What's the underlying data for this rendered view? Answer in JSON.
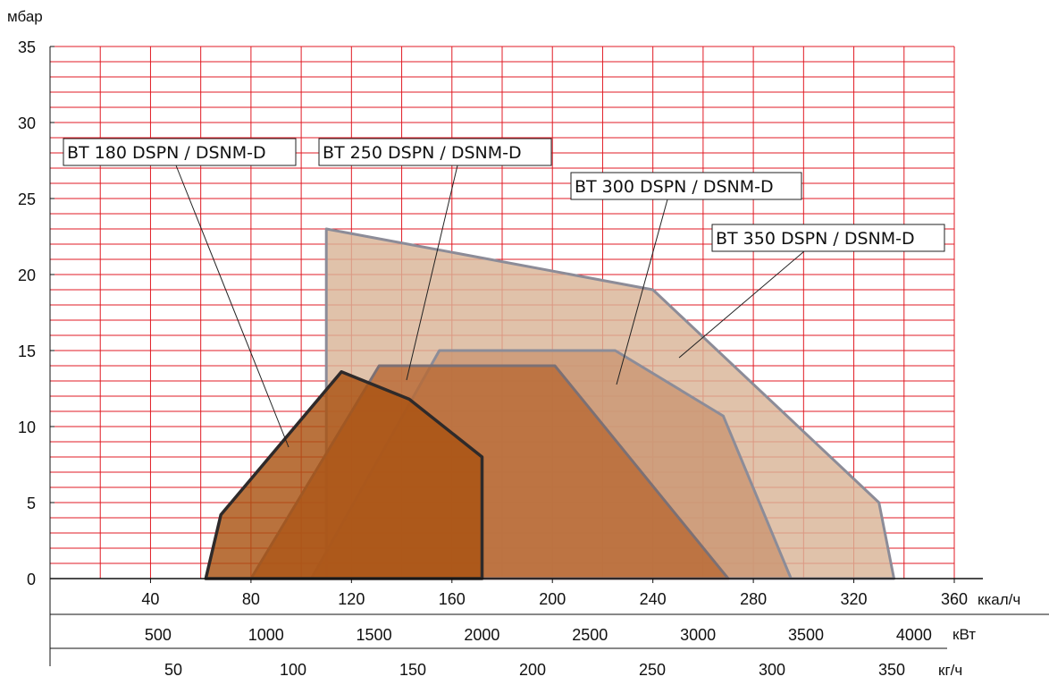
{
  "chart_data": {
    "type": "area",
    "y_unit": "мбар",
    "ylim": [
      0,
      35
    ],
    "y_ticks": [
      0,
      5,
      10,
      15,
      20,
      25,
      30,
      35
    ],
    "x_axes": [
      {
        "unit": "ккал/ч",
        "lim": [
          0,
          360
        ],
        "ticks": [
          40,
          80,
          120,
          160,
          200,
          240,
          280,
          320,
          360
        ],
        "grid_step": 20
      },
      {
        "unit": "кВт",
        "ticks": [
          500,
          1000,
          1500,
          2000,
          2500,
          3000,
          3500,
          4000
        ]
      },
      {
        "unit": "кг/ч",
        "ticks": [
          50,
          100,
          150,
          200,
          250,
          300,
          350
        ]
      }
    ],
    "grid": true,
    "series": [
      {
        "name": "BT 350 DSPN / DSNM-D",
        "fill": "#d9b497",
        "stroke": "#8c8c98",
        "points": [
          [
            110,
            0
          ],
          [
            110,
            23
          ],
          [
            240,
            19
          ],
          [
            330,
            5
          ],
          [
            336,
            0
          ]
        ]
      },
      {
        "name": "BT 300 DSPN / DSNM-D",
        "fill": "#cb9774",
        "stroke": "#8c8c98",
        "points": [
          [
            104,
            0
          ],
          [
            155,
            15
          ],
          [
            225,
            15
          ],
          [
            268,
            10.7
          ],
          [
            295,
            0
          ]
        ]
      },
      {
        "name": "BT 250 DSPN / DSNM-D",
        "fill": "#b86a36",
        "stroke": "#7c7074",
        "points": [
          [
            80,
            0
          ],
          [
            131,
            14
          ],
          [
            201,
            14
          ],
          [
            270,
            0
          ]
        ]
      },
      {
        "name": "BT 180 DSPN / DSNM-D",
        "fill": "#a95312",
        "stroke": "#2e2a2a",
        "points": [
          [
            62,
            0
          ],
          [
            68,
            4.2
          ],
          [
            116,
            13.6
          ],
          [
            143,
            11.8
          ],
          [
            172,
            8
          ],
          [
            172,
            0
          ]
        ]
      }
    ]
  }
}
